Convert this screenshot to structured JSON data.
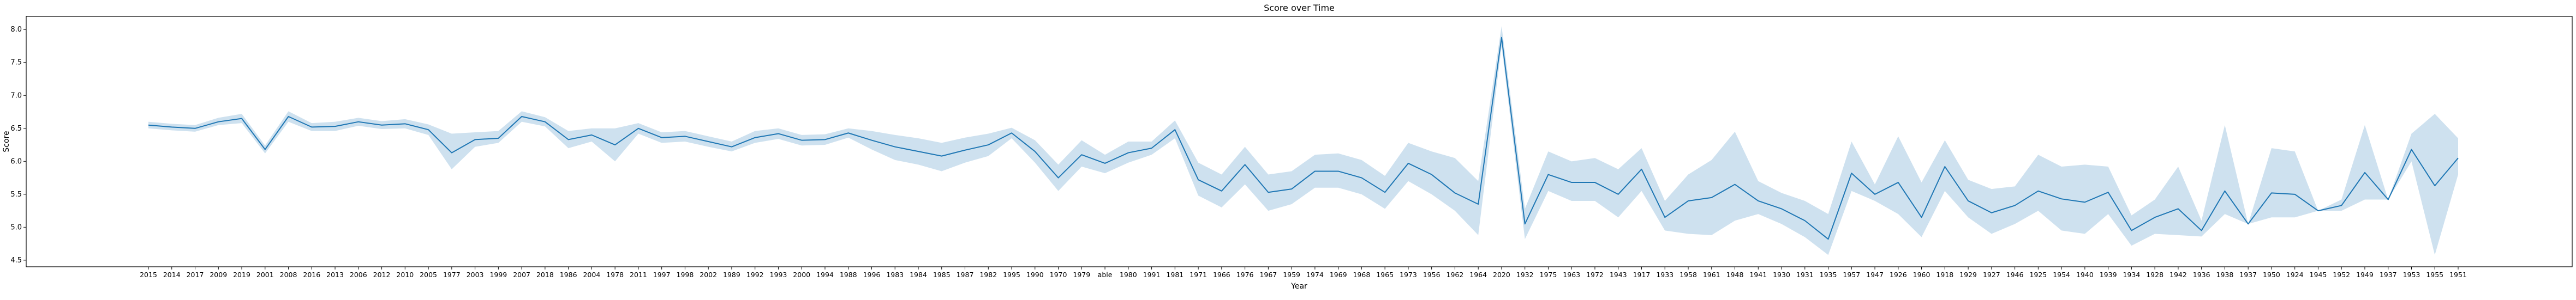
{
  "chart_data": {
    "type": "line",
    "title": "Score over Time",
    "xlabel": "Year",
    "ylabel": "Score",
    "ylim": [
      4.4,
      8.2
    ],
    "yticks": [
      4.5,
      5.0,
      5.5,
      6.0,
      6.5,
      7.0,
      7.5,
      8.0
    ],
    "ytick_labels": [
      "4.5",
      "5.0",
      "5.5",
      "6.0",
      "6.5",
      "7.0",
      "7.5",
      "8.0"
    ],
    "grid": false,
    "colors": {
      "line": "#1f77b4",
      "band": "#1f77b4"
    },
    "categories": [
      "2015",
      "2014",
      "2017",
      "2009",
      "2019",
      "2001",
      "2008",
      "2016",
      "2013",
      "2006",
      "2012",
      "2010",
      "2005",
      "1977",
      "2003",
      "1999",
      "2007",
      "2018",
      "1986",
      "2004",
      "1978",
      "2011",
      "1997",
      "1998",
      "2002",
      "1989",
      "1992",
      "1993",
      "2000",
      "1994",
      "1988",
      "1996",
      "1983",
      "1984",
      "1985",
      "1987",
      "1982",
      "1995",
      "1990",
      "1970",
      "1979",
      "able",
      "1980",
      "1991",
      "1981",
      "1971",
      "1966",
      "1976",
      "1967",
      "1959",
      "1974",
      "1969",
      "1968",
      "1965",
      "1973",
      "1956",
      "1962",
      "1964",
      "2020",
      "1932",
      "1975",
      "1963",
      "1972",
      "1943",
      "1917",
      "1933",
      "1958",
      "1961",
      "1948",
      "1941",
      "1930",
      "1931",
      "1935",
      "1957",
      "1947",
      "1926",
      "1960",
      "1918",
      "1929",
      "1927",
      "1946",
      "1925",
      "1954",
      "1940",
      "1939",
      "1934",
      "1928",
      "1942",
      "1936",
      "1938",
      "1937",
      "1950",
      "1924",
      "1945",
      "1952",
      "1949",
      "1937",
      "1953",
      "1955",
      "1951"
    ],
    "series": [
      {
        "values": [
          6.55,
          6.52,
          6.5,
          6.6,
          6.65,
          6.18,
          6.68,
          6.52,
          6.53,
          6.6,
          6.55,
          6.57,
          6.48,
          6.13,
          6.33,
          6.35,
          6.68,
          6.6,
          6.33,
          6.4,
          6.25,
          6.5,
          6.36,
          6.38,
          6.3,
          6.22,
          6.36,
          6.42,
          6.32,
          6.33,
          6.43,
          6.32,
          6.22,
          6.15,
          6.08,
          6.17,
          6.25,
          6.43,
          6.15,
          5.75,
          6.1,
          5.97,
          6.13,
          6.2,
          6.48,
          5.72,
          5.55,
          5.95,
          5.53,
          5.58,
          5.85,
          5.85,
          5.75,
          5.53,
          5.97,
          5.8,
          5.52,
          5.35,
          7.88,
          5.05,
          5.8,
          5.68,
          5.68,
          5.5,
          5.88,
          5.15,
          5.4,
          5.45,
          5.65,
          5.4,
          5.28,
          5.1,
          4.82,
          5.82,
          5.5,
          5.68,
          5.15,
          5.92,
          5.4,
          5.22,
          5.33,
          5.55,
          5.43,
          5.38,
          5.53,
          4.95,
          5.15,
          5.28,
          4.95,
          5.55,
          5.05,
          5.52,
          5.5,
          5.25,
          5.33,
          5.83,
          5.42,
          6.18,
          5.63,
          6.05
        ],
        "lower": [
          6.5,
          6.47,
          6.45,
          6.55,
          6.58,
          6.12,
          6.6,
          6.46,
          6.46,
          6.54,
          6.49,
          6.5,
          6.4,
          5.88,
          6.22,
          6.28,
          6.6,
          6.53,
          6.2,
          6.3,
          6.0,
          6.42,
          6.28,
          6.3,
          6.22,
          6.15,
          6.28,
          6.34,
          6.24,
          6.25,
          6.36,
          6.18,
          6.02,
          5.95,
          5.85,
          5.98,
          6.08,
          6.35,
          5.98,
          5.55,
          5.92,
          5.82,
          5.98,
          6.1,
          6.35,
          5.48,
          5.3,
          5.65,
          5.25,
          5.35,
          5.6,
          5.6,
          5.5,
          5.28,
          5.7,
          5.5,
          5.25,
          4.88,
          7.75,
          4.82,
          5.55,
          5.4,
          5.4,
          5.15,
          5.55,
          4.95,
          4.9,
          4.88,
          5.1,
          5.2,
          5.05,
          4.85,
          4.58,
          5.55,
          5.4,
          5.2,
          4.85,
          5.55,
          5.15,
          4.9,
          5.05,
          5.25,
          4.95,
          4.9,
          5.2,
          4.72,
          4.9,
          4.88,
          4.86,
          5.2,
          5.05,
          5.15,
          5.15,
          5.25,
          5.25,
          5.42,
          5.42,
          6.0,
          4.58,
          5.8
        ],
        "upper": [
          6.6,
          6.57,
          6.55,
          6.66,
          6.72,
          6.24,
          6.76,
          6.58,
          6.6,
          6.66,
          6.61,
          6.64,
          6.56,
          6.42,
          6.44,
          6.46,
          6.76,
          6.67,
          6.46,
          6.5,
          6.5,
          6.58,
          6.44,
          6.46,
          6.38,
          6.3,
          6.46,
          6.5,
          6.4,
          6.41,
          6.5,
          6.46,
          6.4,
          6.35,
          6.28,
          6.36,
          6.42,
          6.51,
          6.32,
          5.95,
          6.32,
          6.1,
          6.3,
          6.3,
          6.62,
          5.98,
          5.8,
          6.22,
          5.8,
          5.85,
          6.1,
          6.12,
          6.02,
          5.78,
          6.28,
          6.15,
          6.05,
          5.7,
          8.05,
          5.28,
          6.15,
          6.0,
          6.05,
          5.88,
          6.2,
          5.4,
          5.8,
          6.02,
          6.45,
          5.7,
          5.52,
          5.4,
          5.2,
          6.3,
          5.65,
          6.38,
          5.68,
          6.32,
          5.72,
          5.58,
          5.62,
          6.1,
          5.92,
          5.95,
          5.92,
          5.18,
          5.42,
          5.92,
          5.1,
          6.55,
          5.05,
          6.2,
          6.15,
          5.25,
          5.42,
          6.55,
          5.42,
          6.42,
          6.72,
          6.35
        ]
      }
    ]
  }
}
